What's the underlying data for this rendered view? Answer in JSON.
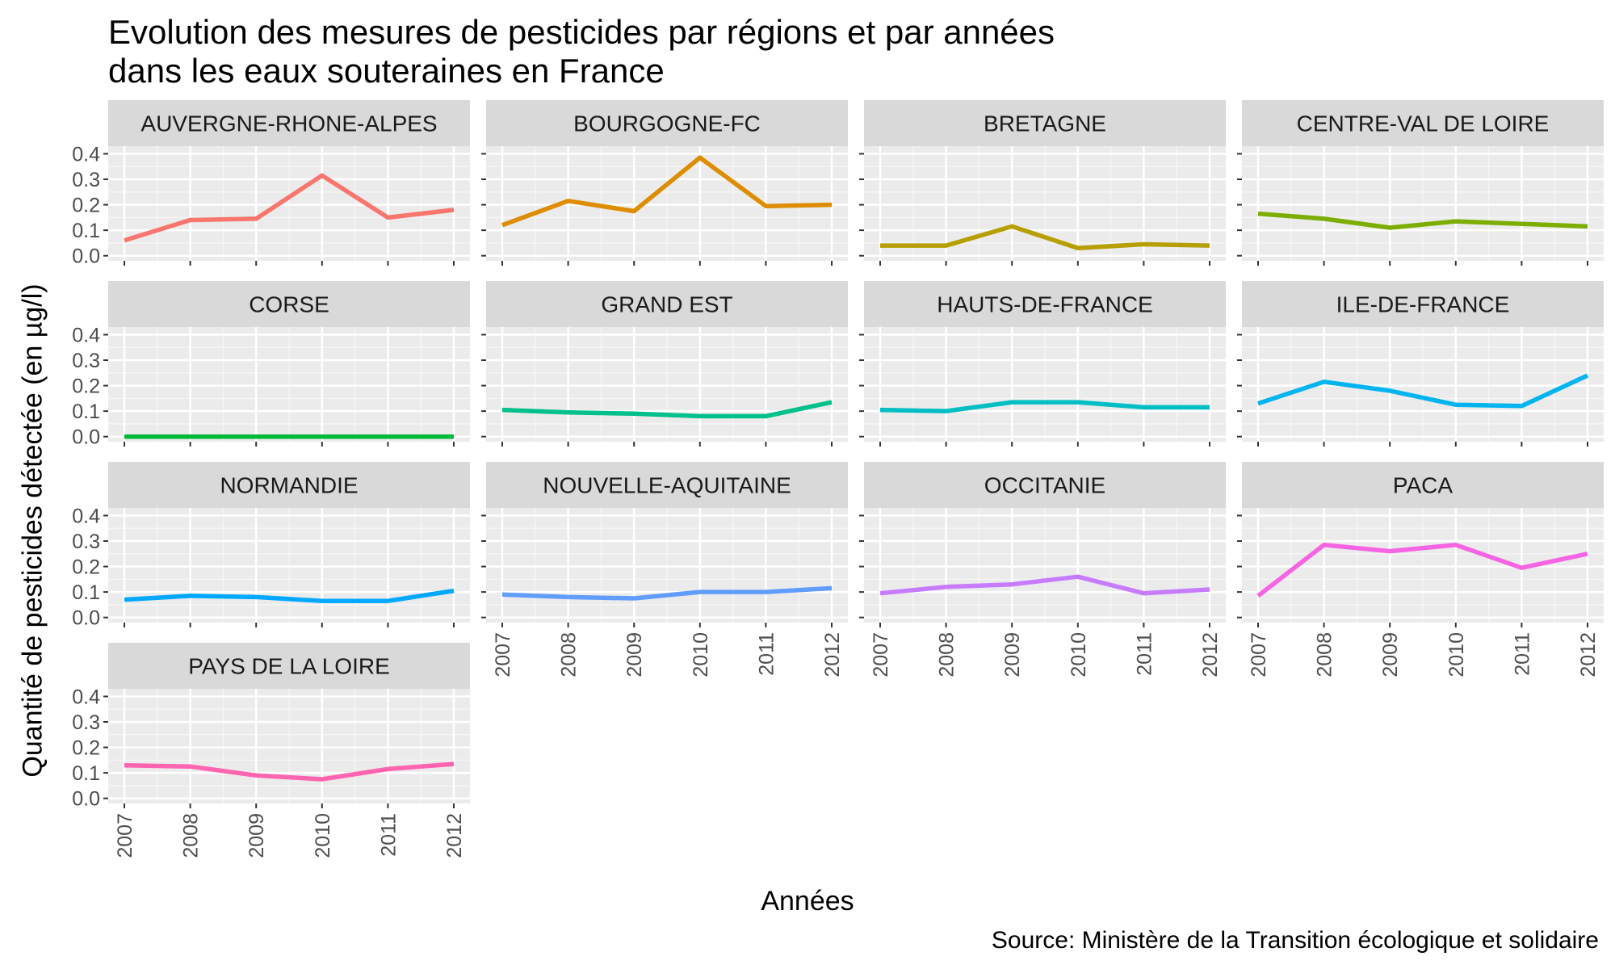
{
  "title_line1": "Evolution des mesures de pesticides par régions et par années",
  "title_line2": "dans les eaux souteraines en France",
  "x_axis_title": "Années",
  "y_axis_title": "Quantité de pesticides détectée (en µg/l)",
  "caption": "Source: Ministère de la Transition écologique et solidaire",
  "chart_data": {
    "type": "line",
    "facets": true,
    "x": [
      "2007",
      "2008",
      "2009",
      "2010",
      "2011",
      "2012"
    ],
    "y_ticks": [
      "0.0",
      "0.1",
      "0.2",
      "0.3",
      "0.4"
    ],
    "ylim": [
      0,
      0.4
    ],
    "grid": true,
    "panels": [
      {
        "label": "AUVERGNE-RHONE-ALPES",
        "color": "#F8766D",
        "values": [
          0.06,
          0.14,
          0.145,
          0.315,
          0.15,
          0.18
        ]
      },
      {
        "label": "BOURGOGNE-FC",
        "color": "#DE8C00",
        "values": [
          0.12,
          0.215,
          0.175,
          0.385,
          0.195,
          0.2
        ]
      },
      {
        "label": "BRETAGNE",
        "color": "#B79F00",
        "values": [
          0.04,
          0.04,
          0.115,
          0.03,
          0.045,
          0.04
        ]
      },
      {
        "label": "CENTRE-VAL DE LOIRE",
        "color": "#7CAE00",
        "values": [
          0.165,
          0.145,
          0.11,
          0.135,
          0.125,
          0.115
        ]
      },
      {
        "label": "CORSE",
        "color": "#00BA38",
        "values": [
          0.0,
          0.0,
          0.0,
          0.0,
          0.0,
          0.0
        ]
      },
      {
        "label": "GRAND EST",
        "color": "#00C08B",
        "values": [
          0.105,
          0.095,
          0.09,
          0.08,
          0.08,
          0.135
        ]
      },
      {
        "label": "HAUTS-DE-FRANCE",
        "color": "#00BFC4",
        "values": [
          0.105,
          0.1,
          0.135,
          0.135,
          0.115,
          0.115
        ]
      },
      {
        "label": "ILE-DE-FRANCE",
        "color": "#00B4F0",
        "values": [
          0.13,
          0.215,
          0.18,
          0.125,
          0.12,
          0.24
        ]
      },
      {
        "label": "NORMANDIE",
        "color": "#00A9FF",
        "values": [
          0.07,
          0.085,
          0.08,
          0.065,
          0.065,
          0.105
        ]
      },
      {
        "label": "NOUVELLE-AQUITAINE",
        "color": "#619CFF",
        "values": [
          0.09,
          0.08,
          0.075,
          0.1,
          0.1,
          0.115
        ]
      },
      {
        "label": "OCCITANIE",
        "color": "#C77CFF",
        "values": [
          0.095,
          0.12,
          0.13,
          0.16,
          0.095,
          0.11
        ]
      },
      {
        "label": "PACA",
        "color": "#F564E3",
        "values": [
          0.085,
          0.285,
          0.26,
          0.285,
          0.195,
          0.25
        ]
      },
      {
        "label": "PAYS DE LA LOIRE",
        "color": "#FF64B0",
        "values": [
          0.13,
          0.125,
          0.09,
          0.075,
          0.115,
          0.135
        ]
      }
    ]
  }
}
